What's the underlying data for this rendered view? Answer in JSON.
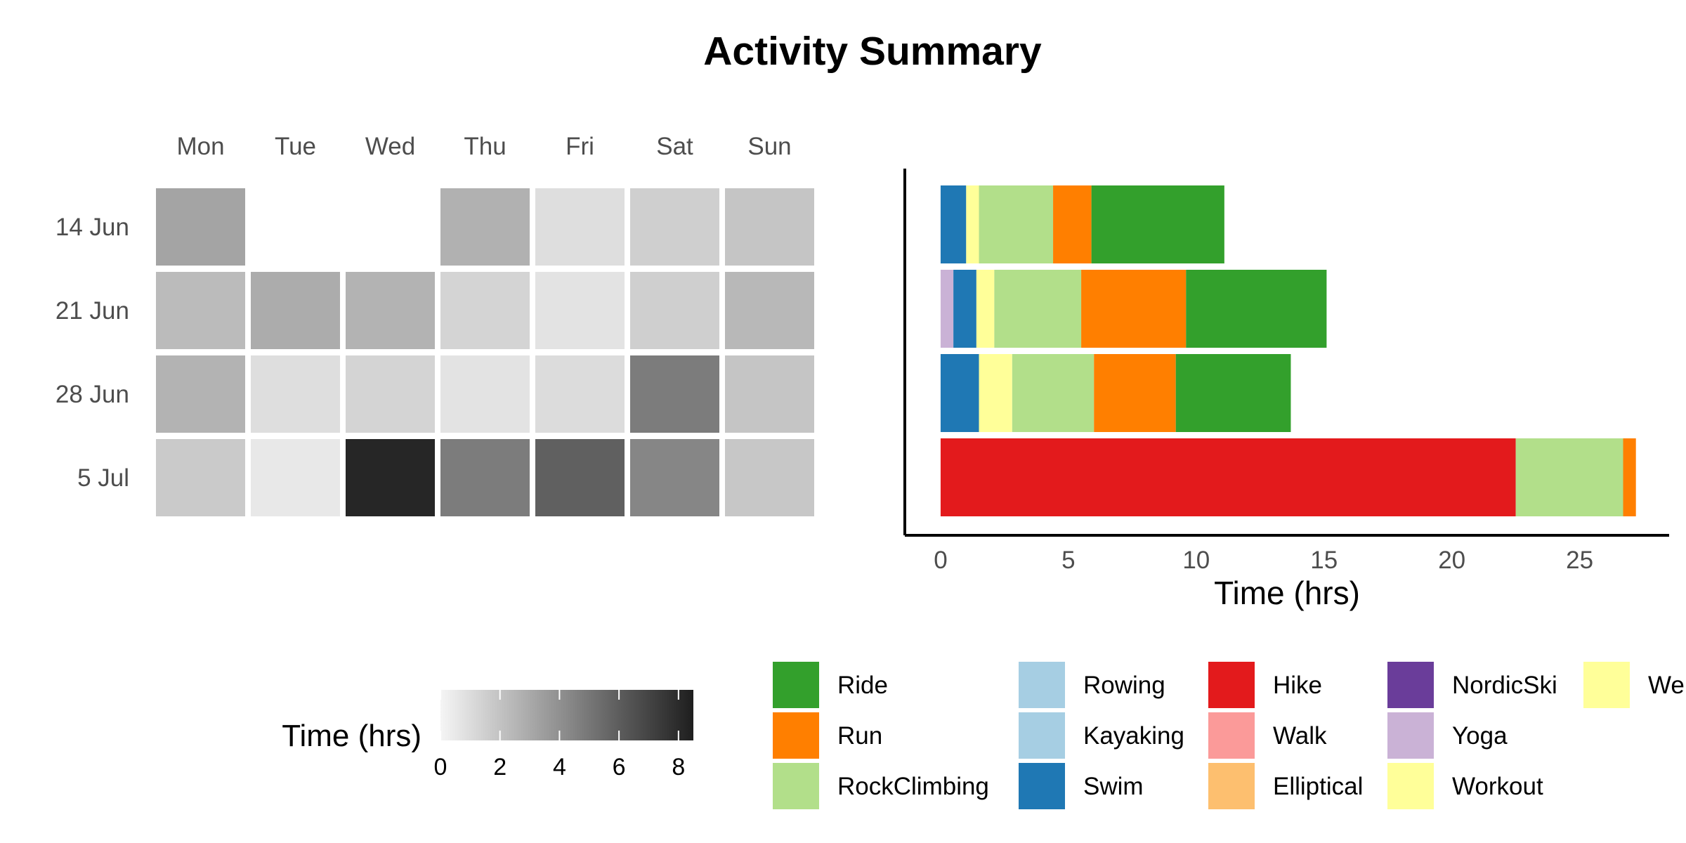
{
  "title": "Activity Summary",
  "colors": {
    "Ride": "#33a02c",
    "Run": "#ff7f00",
    "RockClimbing": "#b2df8a",
    "Rowing": "#a6cee3",
    "Kayaking": "#a6cee3",
    "Swim": "#1f78b4",
    "Hike": "#e31a1c",
    "Walk": "#fb9a99",
    "Elliptical": "#fdbf6f",
    "NordicSki": "#6a3d9a",
    "Yoga": "#cab2d6",
    "Workout": "#ffff99",
    "Weight": "#ffff99"
  },
  "legend": {
    "columns": [
      [
        "Ride",
        "Run",
        "RockClimbing"
      ],
      [
        "Rowing",
        "Kayaking",
        "Swim"
      ],
      [
        "Hike",
        "Walk",
        "Elliptical"
      ],
      [
        "NordicSki",
        "Yoga",
        "Workout"
      ],
      [
        "We"
      ]
    ]
  },
  "colorbar": {
    "title": "Time (hrs)",
    "ticks": [
      "0",
      "2",
      "4",
      "6",
      "8"
    ],
    "range": [
      0,
      8.5
    ]
  },
  "chart_data": [
    {
      "type": "heatmap",
      "days": [
        "Mon",
        "Tue",
        "Wed",
        "Thu",
        "Fri",
        "Sat",
        "Sun"
      ],
      "weeks": [
        "14 Jun",
        "21 Jun",
        "28 Jun",
        "5 Jul"
      ],
      "values": [
        [
          3.2,
          null,
          null,
          2.7,
          0.9,
          1.5,
          1.9
        ],
        [
          2.3,
          2.9,
          2.6,
          1.3,
          0.7,
          1.5,
          2.4
        ],
        [
          2.6,
          0.9,
          1.3,
          0.7,
          1.0,
          4.8,
          1.9
        ],
        [
          1.7,
          0.5,
          8.2,
          4.8,
          5.9,
          4.4,
          1.8
        ]
      ],
      "legend_title": "Time (hrs)"
    },
    {
      "type": "bar",
      "orientation": "horizontal",
      "stacked": true,
      "categories": [
        "14 Jun",
        "21 Jun",
        "28 Jun",
        "5 Jul"
      ],
      "xlabel": "Time (hrs)",
      "xlim": [
        -1.4,
        28.5
      ],
      "xticks": [
        0,
        5,
        10,
        15,
        20,
        25
      ],
      "stacks": [
        [
          {
            "activity": "Swim",
            "value": 1.0
          },
          {
            "activity": "Workout",
            "value": 0.5
          },
          {
            "activity": "RockClimbing",
            "value": 2.9
          },
          {
            "activity": "Run",
            "value": 1.5
          },
          {
            "activity": "Ride",
            "value": 5.2
          }
        ],
        [
          {
            "activity": "Yoga",
            "value": 0.5
          },
          {
            "activity": "Swim",
            "value": 0.9
          },
          {
            "activity": "Workout",
            "value": 0.7
          },
          {
            "activity": "RockClimbing",
            "value": 3.4
          },
          {
            "activity": "Run",
            "value": 4.1
          },
          {
            "activity": "Ride",
            "value": 5.5
          }
        ],
        [
          {
            "activity": "Swim",
            "value": 1.5
          },
          {
            "activity": "Workout",
            "value": 1.3
          },
          {
            "activity": "RockClimbing",
            "value": 3.2
          },
          {
            "activity": "Run",
            "value": 3.2
          },
          {
            "activity": "Ride",
            "value": 4.5
          }
        ],
        [
          {
            "activity": "Hike",
            "value": 22.5
          },
          {
            "activity": "RockClimbing",
            "value": 4.2
          },
          {
            "activity": "Run",
            "value": 0.5
          }
        ]
      ]
    }
  ]
}
